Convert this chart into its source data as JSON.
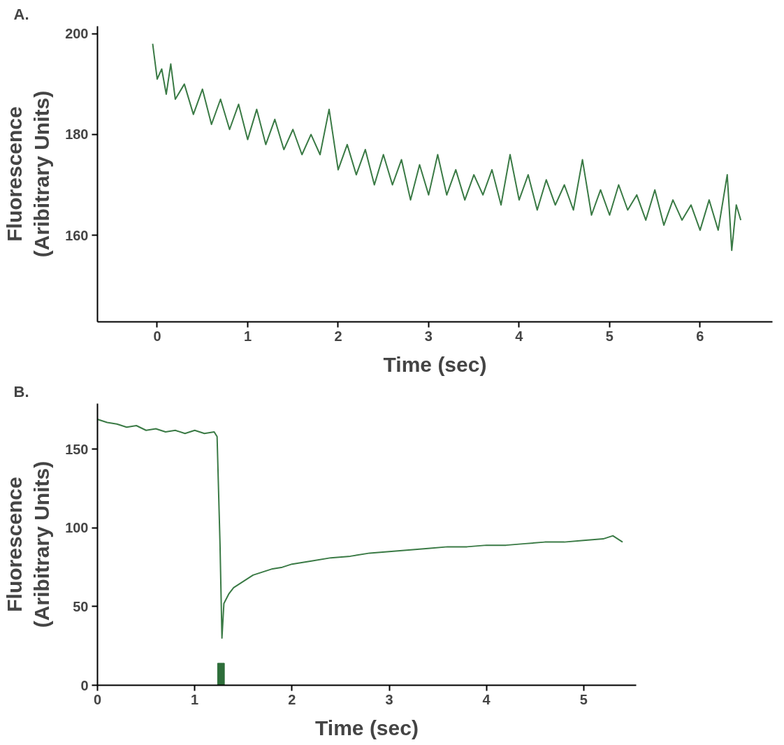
{
  "chart_data": [
    {
      "type": "line",
      "title": "A.",
      "xlabel": "Time (sec)",
      "ylabel": "Fluorescence\n(Aribitrary Units)",
      "xlim": [
        -0.66,
        6.8
      ],
      "ylim": [
        142.8,
        201.5
      ],
      "xticks": [
        0,
        1,
        2,
        3,
        4,
        5,
        6
      ],
      "yticks": [
        160,
        180,
        200
      ],
      "grid": false,
      "series": [
        {
          "color": "#3a7a45",
          "x": [
            -0.05,
            0,
            0.05,
            0.1,
            0.15,
            0.2,
            0.3,
            0.4,
            0.5,
            0.6,
            0.7,
            0.8,
            0.9,
            1.0,
            1.1,
            1.2,
            1.3,
            1.4,
            1.5,
            1.6,
            1.7,
            1.8,
            1.9,
            2.0,
            2.1,
            2.2,
            2.3,
            2.4,
            2.5,
            2.6,
            2.7,
            2.8,
            2.9,
            3.0,
            3.1,
            3.2,
            3.3,
            3.4,
            3.5,
            3.6,
            3.7,
            3.8,
            3.9,
            4.0,
            4.1,
            4.2,
            4.3,
            4.4,
            4.5,
            4.6,
            4.7,
            4.8,
            4.9,
            5.0,
            5.1,
            5.2,
            5.3,
            5.4,
            5.5,
            5.6,
            5.7,
            5.8,
            5.9,
            6.0,
            6.1,
            6.2,
            6.3,
            6.35,
            6.4,
            6.45
          ],
          "values": [
            198,
            191,
            193,
            188,
            194,
            187,
            190,
            184,
            189,
            182,
            187,
            181,
            186,
            179,
            185,
            178,
            183,
            177,
            181,
            176,
            180,
            176,
            185,
            173,
            178,
            172,
            177,
            170,
            176,
            170,
            175,
            167,
            174,
            168,
            176,
            168,
            173,
            167,
            172,
            168,
            173,
            166,
            176,
            167,
            172,
            165,
            171,
            166,
            170,
            165,
            175,
            164,
            169,
            164,
            170,
            165,
            168,
            163,
            169,
            162,
            167,
            163,
            166,
            161,
            167,
            161,
            172,
            157,
            166,
            163
          ]
        }
      ]
    },
    {
      "type": "line",
      "title": "B.",
      "xlabel": "Time (sec)",
      "ylabel": "Fluorescence\n(Aribitrary Units)",
      "xlim": [
        0,
        5.54
      ],
      "ylim": [
        0,
        179
      ],
      "xticks": [
        0,
        1,
        2,
        3,
        4,
        5
      ],
      "yticks": [
        0,
        50,
        100,
        150
      ],
      "grid": false,
      "series": [
        {
          "color": "#3a7a45",
          "x": [
            0,
            0.1,
            0.2,
            0.3,
            0.4,
            0.5,
            0.6,
            0.7,
            0.8,
            0.9,
            1.0,
            1.1,
            1.2,
            1.23,
            1.26,
            1.28,
            1.3,
            1.35,
            1.4,
            1.5,
            1.6,
            1.7,
            1.8,
            1.9,
            2.0,
            2.2,
            2.4,
            2.6,
            2.8,
            3.0,
            3.2,
            3.4,
            3.6,
            3.8,
            4.0,
            4.2,
            4.4,
            4.6,
            4.8,
            5.0,
            5.2,
            5.3,
            5.4
          ],
          "values": [
            169,
            167,
            166,
            164,
            165,
            162,
            163,
            161,
            162,
            160,
            162,
            160,
            161,
            158,
            90,
            30,
            52,
            58,
            62,
            66,
            70,
            72,
            74,
            75,
            77,
            79,
            81,
            82,
            84,
            85,
            86,
            87,
            88,
            88,
            89,
            89,
            90,
            91,
            91,
            92,
            93,
            95,
            91
          ]
        },
        {
          "type": "bar",
          "color": "#2e6e3a",
          "x": [
            1.27
          ],
          "values": [
            14
          ]
        }
      ]
    }
  ]
}
